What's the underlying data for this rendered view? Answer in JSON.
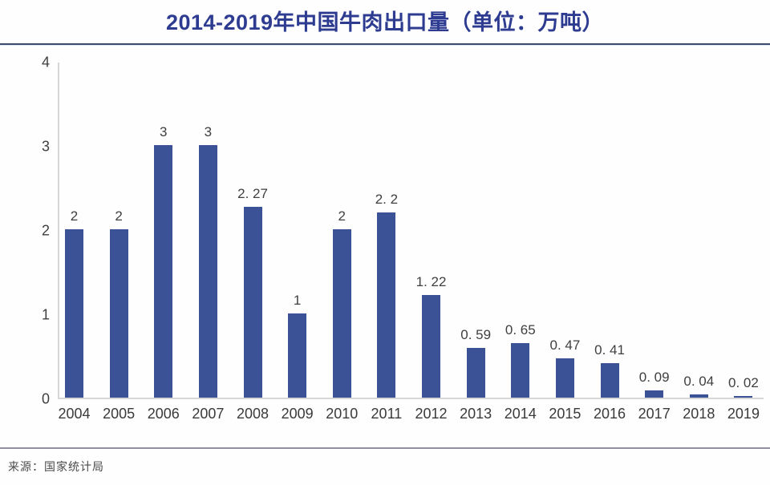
{
  "header": {
    "title": "2014-2019年中国牛肉出口量（单位：万吨）"
  },
  "footer": {
    "source": "来源：国家统计局"
  },
  "colors": {
    "bar": "#3b5296",
    "title_text": "#2d3c91",
    "header_rule": "#3d4a6e",
    "axis_line": "#d6d6d6",
    "label_text": "#3f3f3f",
    "footer_rule": "#908fa0"
  },
  "chart_data": {
    "type": "bar",
    "title": "2014-2019年中国牛肉出口量（单位：万吨）",
    "unit": "万吨",
    "categories": [
      "2004",
      "2005",
      "2006",
      "2007",
      "2008",
      "2009",
      "2010",
      "2011",
      "2012",
      "2013",
      "2014",
      "2015",
      "2016",
      "2017",
      "2018",
      "2019"
    ],
    "values": [
      2,
      2,
      3,
      3,
      2.27,
      1,
      2,
      2.2,
      1.22,
      0.59,
      0.65,
      0.47,
      0.41,
      0.09,
      0.04,
      0.02
    ],
    "value_labels": [
      "2",
      "2",
      "3",
      "3",
      "2. 27",
      "1",
      "2",
      "2. 2",
      "1. 22",
      "0. 59",
      "0. 65",
      "0. 47",
      "0. 41",
      "0. 09",
      "0. 04",
      "0. 02"
    ],
    "xlabel": "",
    "ylabel": "",
    "ylim": [
      0,
      4
    ],
    "y_ticks": [
      0,
      1,
      2,
      3,
      4
    ],
    "grid": false,
    "legend": null
  }
}
